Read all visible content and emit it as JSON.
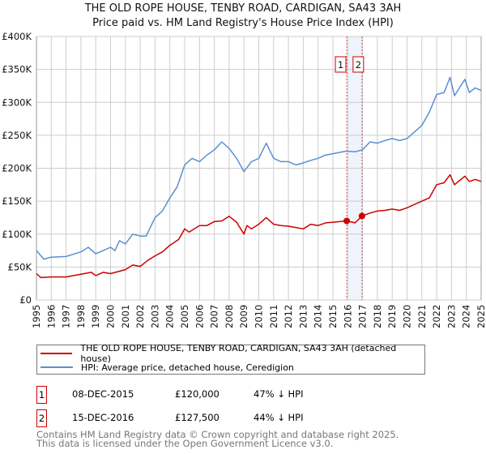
{
  "title": "THE OLD ROPE HOUSE, TENBY ROAD, CARDIGAN, SA43 3AH",
  "subtitle": "Price paid vs. HM Land Registry's House Price Index (HPI)",
  "chart_data": {
    "type": "line",
    "title": "THE OLD ROPE HOUSE, TENBY ROAD, CARDIGAN, SA43 3AH",
    "xlim": [
      1995,
      2025
    ],
    "ylim": [
      0,
      400000
    ],
    "grid": true,
    "y_ticks": [
      0,
      50000,
      100000,
      150000,
      200000,
      250000,
      300000,
      350000,
      400000
    ],
    "y_tick_labels": [
      "£0",
      "£50K",
      "£100K",
      "£150K",
      "£200K",
      "£250K",
      "£300K",
      "£350K",
      "£400K"
    ],
    "x_ticks": [
      "1995",
      "1996",
      "1997",
      "1998",
      "1999",
      "2000",
      "2001",
      "2002",
      "2003",
      "2004",
      "2005",
      "2006",
      "2007",
      "2008",
      "2009",
      "2010",
      "2011",
      "2012",
      "2013",
      "2014",
      "2015",
      "2016",
      "2017",
      "2018",
      "2019",
      "2020",
      "2021",
      "2022",
      "2023",
      "2024",
      "2025"
    ],
    "colors": {
      "property": "#cc0000",
      "hpi": "#5b8fd0",
      "band": "#eef3fc"
    },
    "series": [
      {
        "name": "THE OLD ROPE HOUSE, TENBY ROAD, CARDIGAN, SA43 3AH (detached house)",
        "x": [
          1995,
          1995.3,
          1996,
          1997,
          1998,
          1998.7,
          1999,
          1999.5,
          2000,
          2001,
          2001.5,
          2002,
          2002.5,
          2003,
          2003.5,
          2004,
          2004.6,
          2005,
          2005.3,
          2006,
          2006.5,
          2007,
          2007.5,
          2008,
          2008.5,
          2009,
          2009.2,
          2009.5,
          2010,
          2010.5,
          2011,
          2011.5,
          2012,
          2012.5,
          2013,
          2013.5,
          2014,
          2014.5,
          2015,
          2015.93,
          2016.5,
          2016.96,
          2017.5,
          2018,
          2018.5,
          2019,
          2019.5,
          2020,
          2020.5,
          2021,
          2021.5,
          2022,
          2022.5,
          2022.9,
          2023.2,
          2023.9,
          2024.2,
          2024.6,
          2025
        ],
        "values": [
          40000,
          34000,
          35000,
          35000,
          39000,
          42000,
          37000,
          42000,
          40000,
          46000,
          53000,
          51000,
          60000,
          67000,
          73000,
          83000,
          92000,
          108000,
          103000,
          113000,
          113000,
          119000,
          120000,
          127000,
          118000,
          100000,
          113000,
          108000,
          115000,
          125000,
          115000,
          113000,
          112000,
          110000,
          108000,
          115000,
          113000,
          117000,
          118000,
          120000,
          117000,
          127500,
          132000,
          135000,
          136000,
          138000,
          136000,
          140000,
          145000,
          150000,
          155000,
          175000,
          178000,
          190000,
          175000,
          188000,
          180000,
          183000,
          180000
        ]
      },
      {
        "name": "HPI: Average price, detached house, Ceredigion",
        "x": [
          1995,
          1995.5,
          1996,
          1997,
          1998,
          1998.5,
          1999,
          2000,
          2000.3,
          2000.6,
          2001,
          2001.5,
          2002,
          2002.4,
          2003,
          2003.5,
          2004,
          2004.5,
          2005,
          2005.5,
          2006,
          2006.5,
          2007,
          2007.5,
          2008,
          2008.5,
          2009,
          2009.5,
          2010,
          2010.5,
          2011,
          2011.5,
          2012,
          2012.5,
          2013,
          2013.5,
          2014,
          2014.5,
          2015,
          2015.9,
          2016.5,
          2017,
          2017.5,
          2018,
          2018.5,
          2019,
          2019.5,
          2020,
          2020.5,
          2021,
          2021.5,
          2022,
          2022.5,
          2022.9,
          2023.2,
          2023.9,
          2024.2,
          2024.6,
          2025
        ],
        "values": [
          75000,
          62000,
          65000,
          66000,
          73000,
          80000,
          70000,
          80000,
          75000,
          90000,
          85000,
          100000,
          97000,
          97000,
          125000,
          135000,
          155000,
          172000,
          205000,
          215000,
          210000,
          220000,
          228000,
          240000,
          230000,
          215000,
          195000,
          210000,
          215000,
          238000,
          215000,
          210000,
          210000,
          205000,
          208000,
          212000,
          215000,
          220000,
          222000,
          226000,
          225000,
          228000,
          240000,
          238000,
          242000,
          245000,
          242000,
          245000,
          255000,
          265000,
          285000,
          312000,
          315000,
          338000,
          310000,
          335000,
          315000,
          322000,
          318000
        ]
      }
    ],
    "sales": [
      {
        "label": "1",
        "date": "08-DEC-2015",
        "x": 2015.93,
        "price": "£120,000",
        "value": 120000,
        "hpi_diff": "47% ↓ HPI"
      },
      {
        "label": "2",
        "date": "15-DEC-2016",
        "x": 2016.96,
        "price": "£127,500",
        "value": 127500,
        "hpi_diff": "44% ↓ HPI"
      }
    ]
  },
  "legend": {
    "property": "THE OLD ROPE HOUSE, TENBY ROAD, CARDIGAN, SA43 3AH (detached house)",
    "hpi": "HPI: Average price, detached house, Ceredigion"
  },
  "footer": {
    "line1": "Contains HM Land Registry data © Crown copyright and database right 2025.",
    "line2": "This data is licensed under the Open Government Licence v3.0."
  }
}
